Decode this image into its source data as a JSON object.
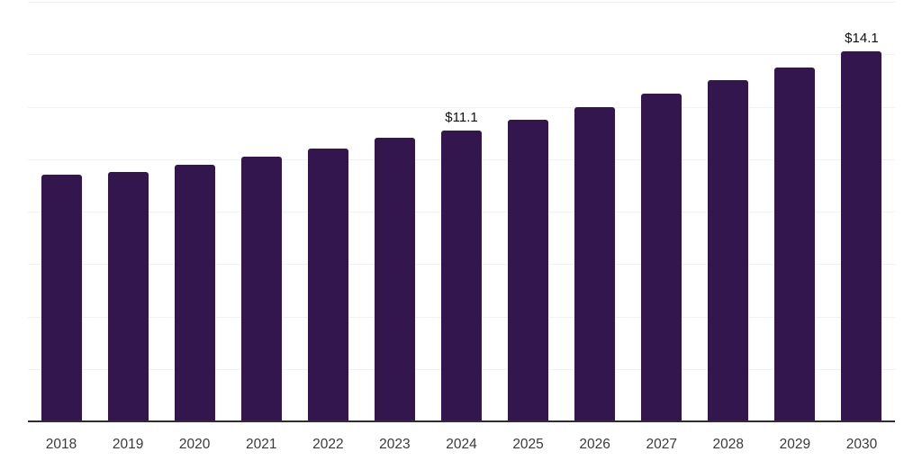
{
  "chart_data": {
    "type": "bar",
    "title": "",
    "xlabel": "",
    "ylabel": "",
    "categories": [
      "2018",
      "2019",
      "2020",
      "2021",
      "2022",
      "2023",
      "2024",
      "2025",
      "2026",
      "2027",
      "2028",
      "2029",
      "2030"
    ],
    "values": [
      9.4,
      9.5,
      9.8,
      10.1,
      10.4,
      10.8,
      11.1,
      11.5,
      12.0,
      12.5,
      13.0,
      13.5,
      14.1
    ],
    "point_labels": [
      {
        "category": "2024",
        "text": "$11.1"
      },
      {
        "category": "2030",
        "text": "$14.1"
      }
    ],
    "ylim": [
      0,
      16
    ],
    "gridline_step": 2,
    "grid": true,
    "legend": false,
    "y_axis_tick_labels_visible": false,
    "colors": {
      "bar": "#33164d",
      "gridline": "#f2f2f2",
      "axis_line": "#2e2e2e",
      "tick_label": "#3a3a3a",
      "data_label": "#101010",
      "background": "#ffffff"
    }
  }
}
